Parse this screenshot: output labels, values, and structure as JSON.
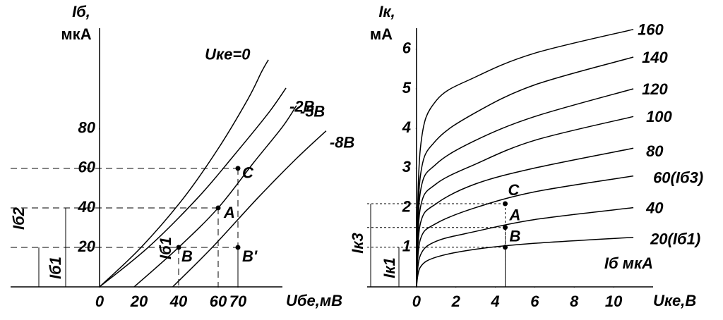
{
  "chart_data": [
    {
      "type": "line",
      "y_label": [
        "Iб,",
        "мкА"
      ],
      "x_label": "Uбе,мВ",
      "xlim": [
        -45,
        115
      ],
      "ylim": [
        0,
        131
      ],
      "xticks": [
        0,
        20,
        40,
        60,
        70
      ],
      "yticks": [
        20,
        40,
        60,
        80
      ],
      "series": [
        {
          "name": "Uке=0",
          "color": "#000",
          "x": [
            0,
            21,
            42.5,
            60,
            75,
            82,
            85.4
          ],
          "values": [
            0,
            20,
            45,
            70,
            95,
            109,
            115
          ]
        },
        {
          "name": "-2B",
          "color": "#000",
          "x": [
            0,
            24.6,
            49.6,
            67.5,
            85.4,
            94.3
          ],
          "values": [
            0,
            20,
            45,
            66,
            88,
            100.7
          ]
        },
        {
          "name": "-5B",
          "color": "#000",
          "x": [
            17.5,
            40,
            60,
            78,
            92.5,
            99.6
          ],
          "values": [
            0,
            20,
            40,
            63,
            81,
            91.8
          ]
        },
        {
          "name": "-8B",
          "color": "#000",
          "x": [
            37,
            57,
            80,
            99.6,
            114.6
          ],
          "values": [
            0,
            20,
            45,
            65,
            79
          ]
        }
      ],
      "points": [
        {
          "label": "C",
          "x": 70,
          "y": 60
        },
        {
          "label": "A",
          "x": 60,
          "y": 40
        },
        {
          "label": "B",
          "x": 40,
          "y": 20
        },
        {
          "label": "B'",
          "x": 70,
          "y": 20
        }
      ],
      "annotations": [
        "Iб2",
        "Iб1",
        "Iб1"
      ]
    },
    {
      "type": "line",
      "y_label": [
        "Iк,",
        "мА"
      ],
      "x_label": "Uке,В",
      "xlim": [
        -2.5,
        12
      ],
      "ylim": [
        0,
        6.53
      ],
      "xticks": [
        0,
        2,
        4,
        6,
        8,
        10
      ],
      "yticks": [
        1,
        2,
        3,
        4,
        5,
        6
      ],
      "x": [
        0,
        0.2,
        1,
        3,
        6,
        11
      ],
      "series": [
        {
          "name": "160",
          "color": "#000",
          "values": [
            0,
            3.5,
            4.7,
            5.3,
            5.9,
            6.5
          ]
        },
        {
          "name": "140",
          "color": "#000",
          "values": [
            0,
            2.8,
            3.7,
            4.4,
            5.1,
            5.8
          ]
        },
        {
          "name": "120",
          "color": "#000",
          "values": [
            0,
            2.4,
            3.1,
            3.7,
            4.3,
            5.0
          ]
        },
        {
          "name": "100",
          "color": "#000",
          "values": [
            0,
            2.0,
            2.6,
            3.1,
            3.7,
            4.3
          ]
        },
        {
          "name": "80",
          "color": "#000",
          "values": [
            0,
            1.6,
            2.1,
            2.6,
            3.0,
            3.5
          ]
        },
        {
          "name": "60(Iб3)",
          "color": "#000",
          "values": [
            0,
            1.2,
            1.6,
            2.0,
            2.4,
            2.8
          ]
        },
        {
          "name": "40",
          "color": "#000",
          "values": [
            0,
            0.8,
            1.15,
            1.4,
            1.7,
            2.0
          ]
        },
        {
          "name": "20(Iб1)",
          "color": "#000",
          "values": [
            0,
            0.5,
            0.75,
            0.95,
            1.1,
            1.25
          ]
        }
      ],
      "points": [
        {
          "label": "C",
          "x": 4.5,
          "y": 2.1
        },
        {
          "label": "A",
          "x": 4.5,
          "y": 1.5
        },
        {
          "label": "B",
          "x": 4.5,
          "y": 1.0
        }
      ],
      "annotations": [
        "Iб мкА",
        "Iк3",
        "Iк1"
      ]
    }
  ]
}
